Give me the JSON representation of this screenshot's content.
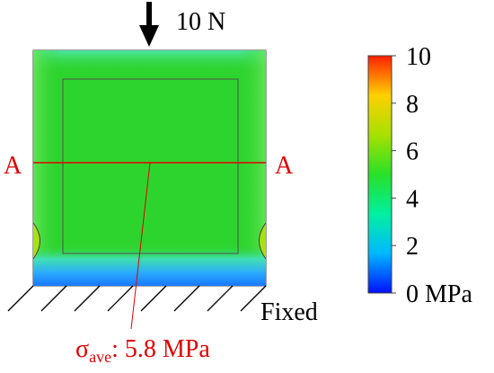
{
  "load": {
    "label": "10 N"
  },
  "section": {
    "left_label": "A",
    "right_label": "A"
  },
  "support": {
    "label": "Fixed"
  },
  "stress": {
    "symbol": "σ",
    "subscript": "ave",
    "value_text": ": 5.8 MPa"
  },
  "colorbar": {
    "min": 0,
    "max": 10,
    "unit": "MPa",
    "ticks": [
      {
        "value": 10,
        "label": "10"
      },
      {
        "value": 8,
        "label": "8"
      },
      {
        "value": 6,
        "label": "6"
      },
      {
        "value": 4,
        "label": "4"
      },
      {
        "value": 2,
        "label": "2"
      },
      {
        "value": 0,
        "label": "0 MPa"
      }
    ],
    "colors": [
      "#0010ff",
      "#00b8ff",
      "#00f0a0",
      "#28e028",
      "#a8e000",
      "#ffd000",
      "#ff2000"
    ]
  },
  "colors": {
    "section_line": "#e00000",
    "annotation": "#e00000",
    "field_main": "#2ed42e",
    "field_low": "#1a8cff",
    "outline": "#404040"
  }
}
